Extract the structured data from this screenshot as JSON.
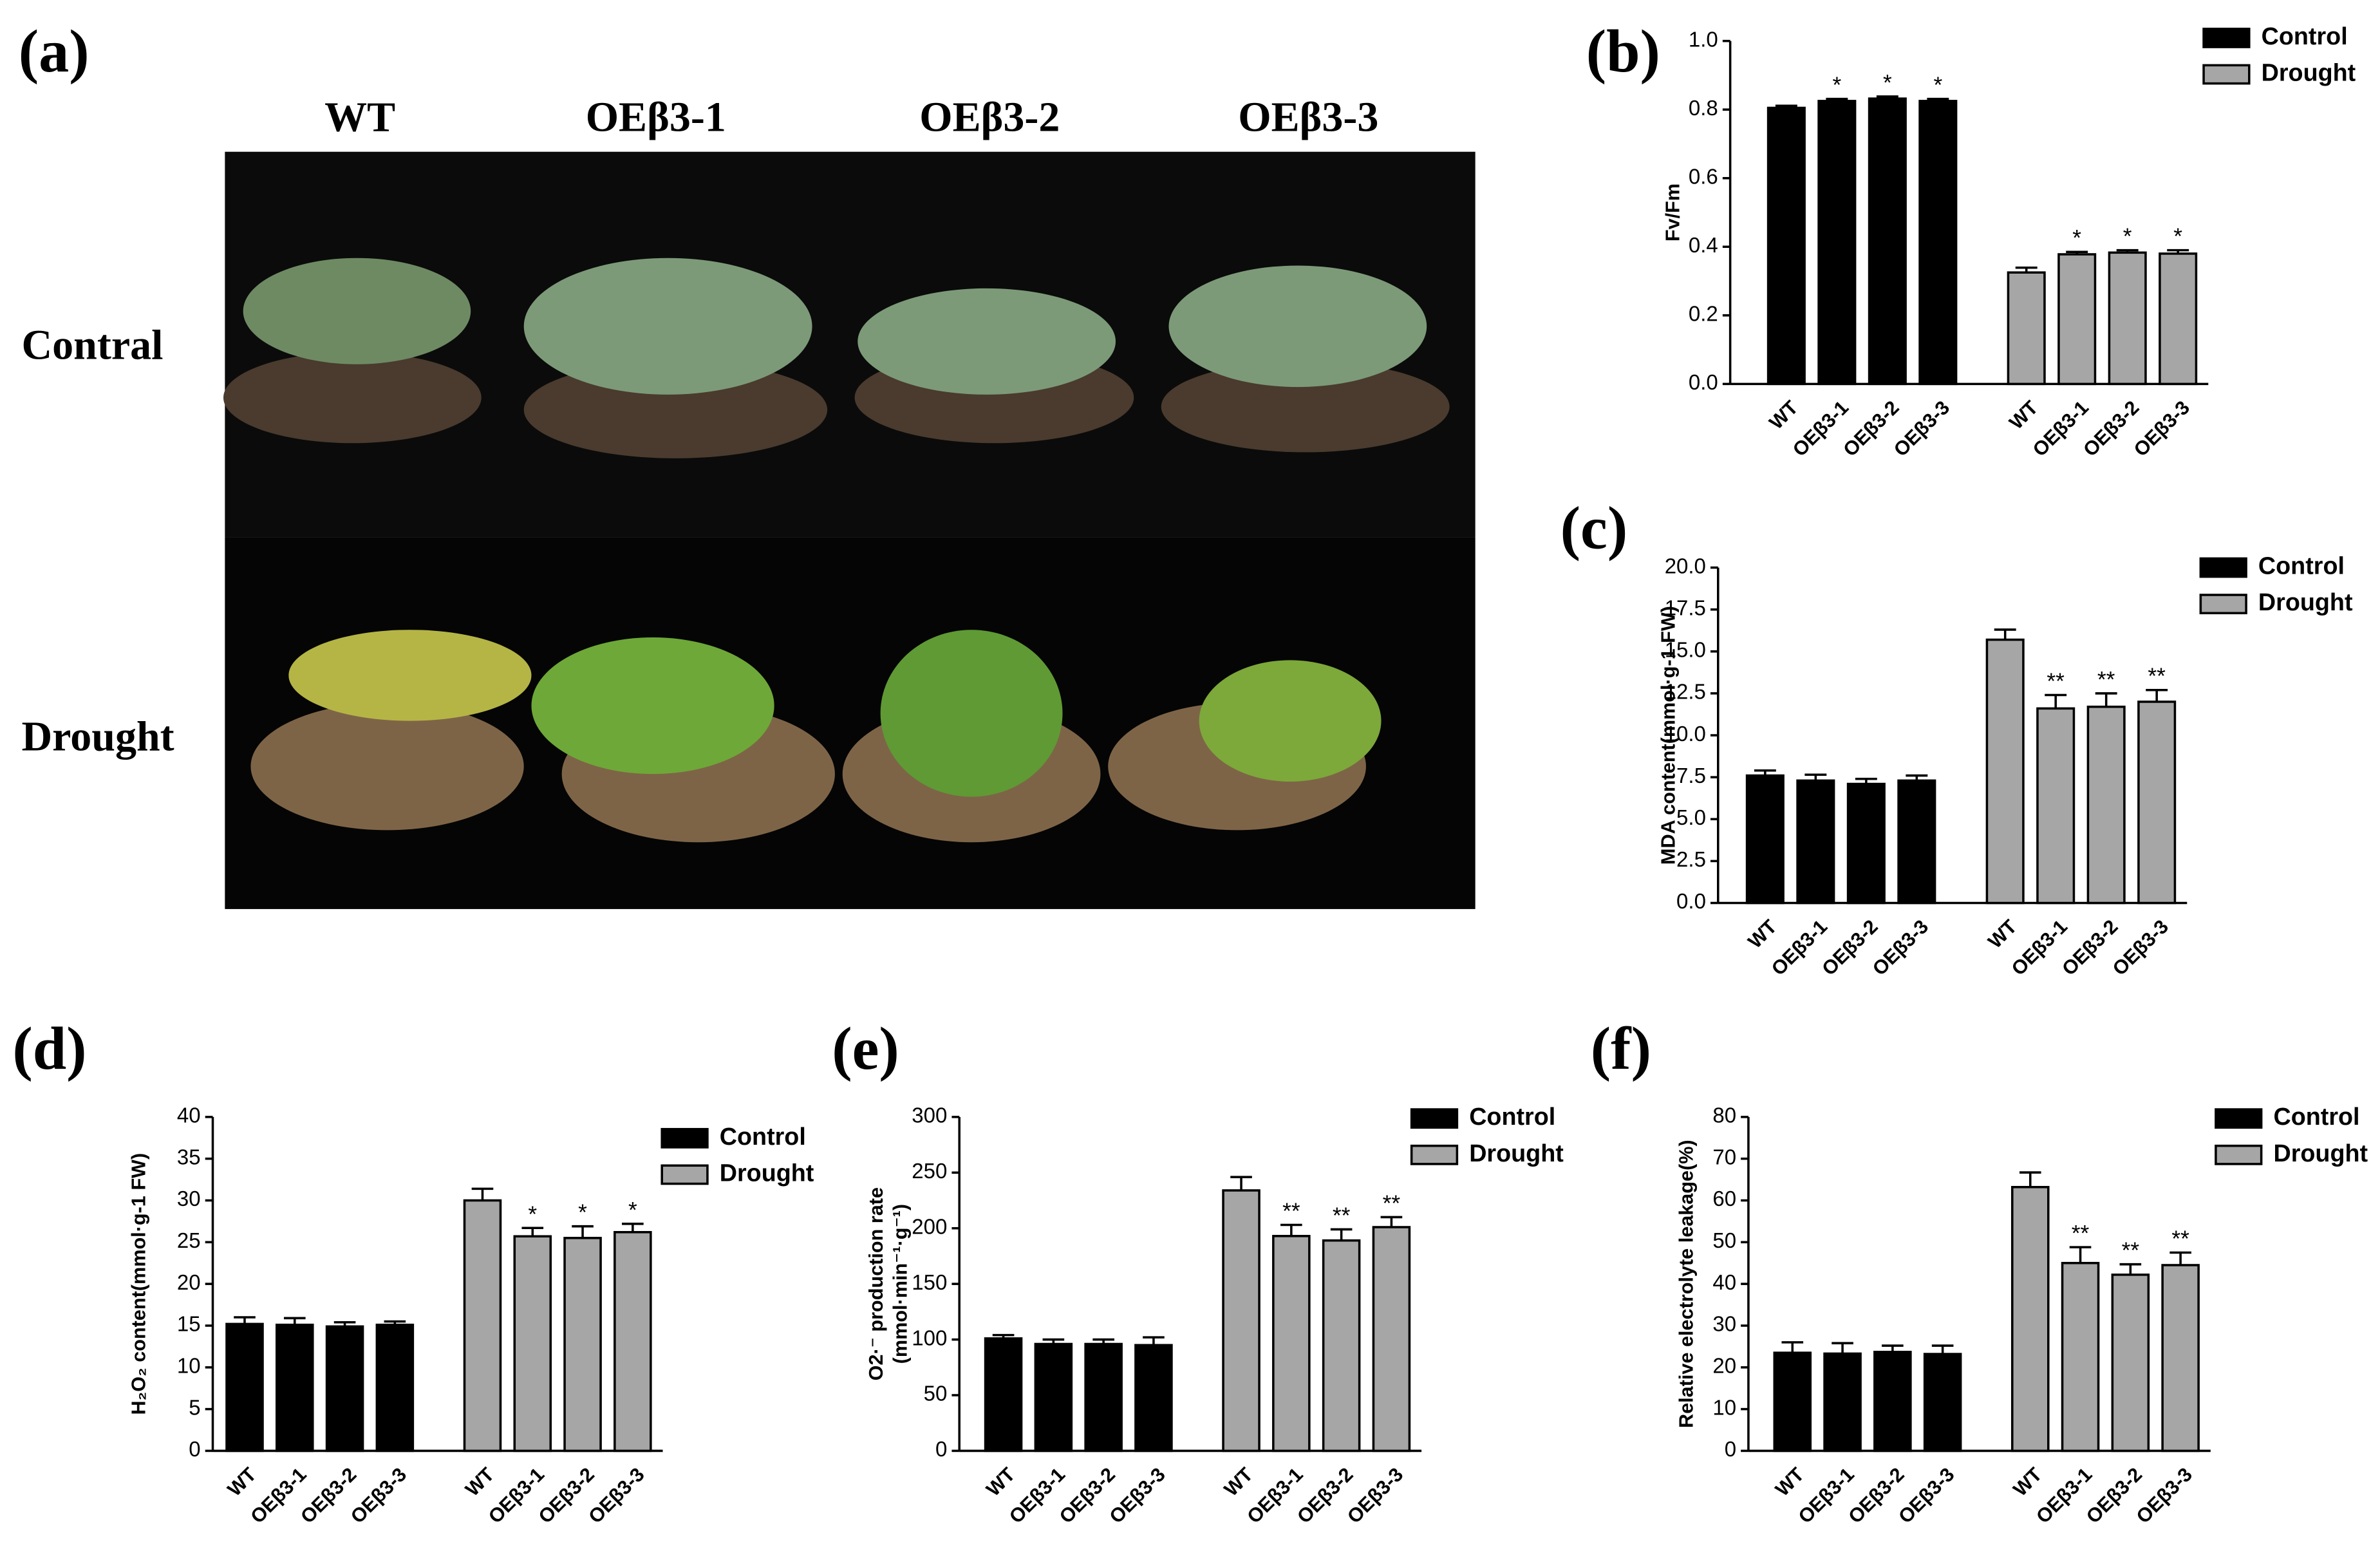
{
  "photo_panel": {
    "label": "(a)",
    "columns": [
      "WT",
      "OEβ3-1",
      "OEβ3-2",
      "OEβ3-3"
    ],
    "rows": [
      "Contral",
      "Drought"
    ]
  },
  "chart_data": [
    {
      "type": "bar",
      "panel_label": "(b)",
      "ylabel": [
        "Fv/Fm"
      ],
      "categories": [
        "WT",
        "OEβ3-1",
        "OEβ3-2",
        "OEβ3-3",
        "WT",
        "OEβ3-1",
        "OEβ3-2",
        "OEβ3-3"
      ],
      "series": [
        {
          "name": "Control",
          "color": "#000000",
          "values": [
            0.805,
            0.825,
            0.832,
            0.825,
            null,
            null,
            null,
            null
          ],
          "errors": [
            0.006,
            0.006,
            0.006,
            0.006,
            null,
            null,
            null,
            null
          ],
          "annotations": [
            null,
            "*",
            "*",
            "*",
            null,
            null,
            null,
            null
          ]
        },
        {
          "name": "Drought",
          "color": "#a6a6a6",
          "values": [
            null,
            null,
            null,
            null,
            0.325,
            0.378,
            0.383,
            0.38
          ],
          "errors": [
            null,
            null,
            null,
            null,
            0.014,
            0.007,
            0.007,
            0.01
          ],
          "annotations": [
            null,
            null,
            null,
            null,
            null,
            "*",
            "*",
            "*"
          ]
        }
      ],
      "ylim": [
        0,
        1
      ],
      "yticks": [
        {
          "value": 0,
          "label": "0.0"
        },
        0.2,
        0.4,
        0.6,
        0.8,
        {
          "value": 1,
          "label": "1.0"
        }
      ]
    },
    {
      "type": "bar",
      "panel_label": "(c)",
      "ylabel": [
        "MDA content(mmol·g-1 FW)"
      ],
      "categories": [
        "WT",
        "OEβ3-1",
        "OEβ3-2",
        "OEβ3-3",
        "WT",
        "OEβ3-1",
        "OEβ3-2",
        "OEβ3-3"
      ],
      "series": [
        {
          "name": "Control",
          "color": "#000000",
          "values": [
            7.6,
            7.3,
            7.1,
            7.3,
            null,
            null,
            null,
            null
          ],
          "errors": [
            0.3,
            0.35,
            0.3,
            0.3,
            null,
            null,
            null,
            null
          ],
          "annotations": [
            null,
            null,
            null,
            null,
            null,
            null,
            null,
            null
          ]
        },
        {
          "name": "Drought",
          "color": "#a6a6a6",
          "values": [
            null,
            null,
            null,
            null,
            15.7,
            11.6,
            11.7,
            12.0
          ],
          "errors": [
            null,
            null,
            null,
            null,
            0.6,
            0.8,
            0.8,
            0.7
          ],
          "annotations": [
            null,
            null,
            null,
            null,
            null,
            "**",
            "**",
            "**"
          ]
        }
      ],
      "ylim": [
        0,
        20
      ],
      "yticks": [
        {
          "value": 0,
          "label": "0.0"
        },
        2.5,
        {
          "value": 5,
          "label": "5.0"
        },
        7.5,
        {
          "value": 10,
          "label": "10.0"
        },
        12.5,
        {
          "value": 15,
          "label": "15.0"
        },
        17.5,
        {
          "value": 20,
          "label": "20.0"
        }
      ]
    },
    {
      "type": "bar",
      "panel_label": "(d)",
      "ylabel": [
        "H₂O₂ content(mmol·g-1 FW)"
      ],
      "categories": [
        "WT",
        "OEβ3-1",
        "OEβ3-2",
        "OEβ3-3",
        "WT",
        "OEβ3-1",
        "OEβ3-2",
        "OEβ3-3"
      ],
      "series": [
        {
          "name": "Control",
          "color": "#000000",
          "values": [
            15.2,
            15.1,
            14.9,
            15.1,
            null,
            null,
            null,
            null
          ],
          "errors": [
            0.8,
            0.8,
            0.5,
            0.4,
            null,
            null,
            null,
            null
          ],
          "annotations": [
            null,
            null,
            null,
            null,
            null,
            null,
            null,
            null
          ]
        },
        {
          "name": "Drought",
          "color": "#a6a6a6",
          "values": [
            null,
            null,
            null,
            null,
            30.0,
            25.7,
            25.5,
            26.2
          ],
          "errors": [
            null,
            null,
            null,
            null,
            1.4,
            1.0,
            1.4,
            1.0
          ],
          "annotations": [
            null,
            null,
            null,
            null,
            null,
            "*",
            "*",
            "*"
          ]
        }
      ],
      "ylim": [
        0,
        40
      ],
      "yticks": [
        0,
        5,
        10,
        15,
        20,
        25,
        30,
        35,
        40
      ]
    },
    {
      "type": "bar",
      "panel_label": "(e)",
      "ylabel": [
        "O2·⁻ production rate",
        "(mmol·min⁻¹·g⁻¹)"
      ],
      "categories": [
        "WT",
        "OEβ3-1",
        "OEβ3-2",
        "OEβ3-3",
        "WT",
        "OEβ3-1",
        "OEβ3-2",
        "OEβ3-3"
      ],
      "series": [
        {
          "name": "Control",
          "color": "#000000",
          "values": [
            101,
            96,
            96,
            95,
            null,
            null,
            null,
            null
          ],
          "errors": [
            3,
            4,
            4,
            7,
            null,
            null,
            null,
            null
          ],
          "annotations": [
            null,
            null,
            null,
            null,
            null,
            null,
            null,
            null
          ]
        },
        {
          "name": "Drought",
          "color": "#a6a6a6",
          "values": [
            null,
            null,
            null,
            null,
            234,
            193,
            189,
            201
          ],
          "errors": [
            null,
            null,
            null,
            null,
            12,
            10,
            10,
            9
          ],
          "annotations": [
            null,
            null,
            null,
            null,
            null,
            "**",
            "**",
            "**"
          ]
        }
      ],
      "ylim": [
        0,
        300
      ],
      "yticks": [
        0,
        50,
        100,
        150,
        200,
        250,
        300
      ]
    },
    {
      "type": "bar",
      "panel_label": "(f)",
      "ylabel": [
        "Relative electrolyte leakage(%)"
      ],
      "categories": [
        "WT",
        "OEβ3-1",
        "OEβ3-2",
        "OEβ3-3",
        "WT",
        "OEβ3-1",
        "OEβ3-2",
        "OEβ3-3"
      ],
      "series": [
        {
          "name": "Control",
          "color": "#000000",
          "values": [
            23.5,
            23.3,
            23.7,
            23.2,
            null,
            null,
            null,
            null
          ],
          "errors": [
            2.5,
            2.5,
            1.5,
            2.0,
            null,
            null,
            null,
            null
          ],
          "annotations": [
            null,
            null,
            null,
            null,
            null,
            null,
            null,
            null
          ]
        },
        {
          "name": "Drought",
          "color": "#a6a6a6",
          "values": [
            null,
            null,
            null,
            null,
            63.2,
            45.0,
            42.2,
            44.5
          ],
          "errors": [
            null,
            null,
            null,
            null,
            3.5,
            3.8,
            2.5,
            3.0
          ],
          "annotations": [
            null,
            null,
            null,
            null,
            null,
            "**",
            "**",
            "**"
          ]
        }
      ],
      "ylim": [
        0,
        80
      ],
      "yticks": [
        0,
        10,
        20,
        30,
        40,
        50,
        60,
        70,
        80
      ]
    }
  ]
}
